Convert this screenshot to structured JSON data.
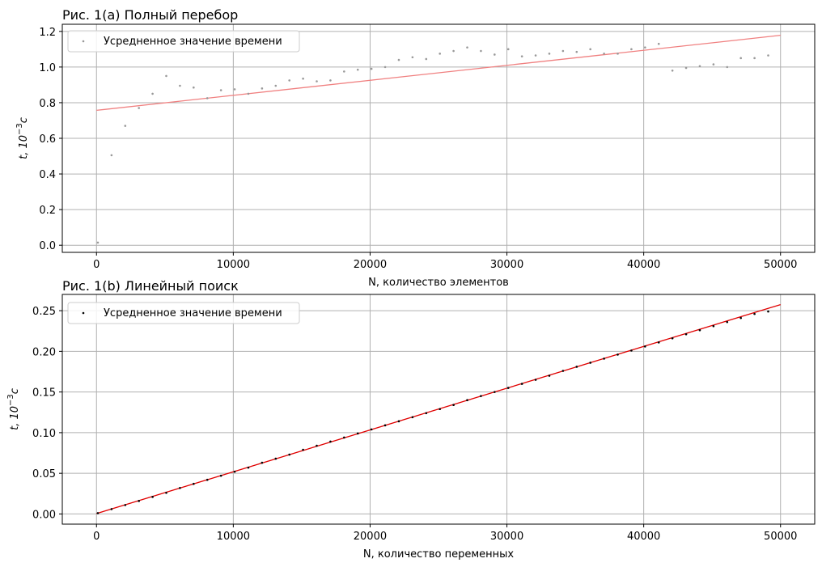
{
  "chart_data": [
    {
      "type": "scatter",
      "title": "Рис. 1(a) Полный перебор",
      "xlabel": "N, количество элементов",
      "ylabel_main": "t, 10",
      "ylabel_exp": "−3",
      "ylabel_unit": "c",
      "xlim": [
        -2500,
        52500
      ],
      "ylim": [
        -0.04,
        1.24
      ],
      "xticks": [
        0,
        10000,
        20000,
        30000,
        40000,
        50000
      ],
      "yticks": [
        0.0,
        0.2,
        0.4,
        0.6,
        0.8,
        1.0,
        1.2
      ],
      "ytick_labels": [
        "0.0",
        "0.2",
        "0.4",
        "0.6",
        "0.8",
        "1.0",
        "1.2"
      ],
      "grid": true,
      "legend_position": "upper-left",
      "marker_color": "#999999",
      "line_color": "#f08080",
      "series": [
        {
          "name": "Усредненное значение времени",
          "x": [
            100,
            1100,
            2100,
            3100,
            4100,
            5100,
            6100,
            7100,
            8100,
            9100,
            10100,
            11100,
            12100,
            13100,
            14100,
            15100,
            16100,
            17100,
            18100,
            19100,
            20100,
            21100,
            22100,
            23100,
            24100,
            25100,
            26100,
            27100,
            28100,
            29100,
            30100,
            31100,
            32100,
            33100,
            34100,
            35100,
            36100,
            37100,
            38100,
            39100,
            40100,
            41100,
            42100,
            43100,
            44100,
            45100,
            46100,
            47100,
            48100,
            49100
          ],
          "y": [
            0.015,
            0.505,
            0.67,
            0.77,
            0.85,
            0.95,
            0.895,
            0.885,
            0.825,
            0.87,
            0.875,
            0.85,
            0.88,
            0.895,
            0.925,
            0.935,
            0.92,
            0.925,
            0.975,
            0.985,
            0.99,
            1.0,
            1.04,
            1.055,
            1.045,
            1.075,
            1.09,
            1.11,
            1.09,
            1.07,
            1.1,
            1.06,
            1.065,
            1.075,
            1.09,
            1.085,
            1.1,
            1.075,
            1.075,
            1.1,
            1.11,
            1.13,
            0.98,
            0.995,
            1.005,
            1.015,
            1.0,
            1.05,
            1.05,
            1.065
          ]
        }
      ],
      "fit_line": {
        "x": [
          0,
          50000
        ],
        "y": [
          0.757,
          1.178
        ]
      }
    },
    {
      "type": "scatter",
      "title": "Рис. 1(b) Линейный поиск",
      "xlabel": "N, количество переменных",
      "ylabel_main": "t, 10",
      "ylabel_exp": "−3",
      "ylabel_unit": "c",
      "xlim": [
        -2500,
        52500
      ],
      "ylim": [
        -0.0125,
        0.27
      ],
      "xticks": [
        0,
        10000,
        20000,
        30000,
        40000,
        50000
      ],
      "yticks": [
        0.0,
        0.05,
        0.1,
        0.15,
        0.2,
        0.25
      ],
      "ytick_labels": [
        "0.00",
        "0.05",
        "0.10",
        "0.15",
        "0.20",
        "0.25"
      ],
      "grid": true,
      "legend_position": "upper-left",
      "marker_color": "#000000",
      "line_color": "#e00000",
      "series": [
        {
          "name": "Усредненное значение времени",
          "x": [
            100,
            1100,
            2100,
            3100,
            4100,
            5100,
            6100,
            7100,
            8100,
            9100,
            10100,
            11100,
            12100,
            13100,
            14100,
            15100,
            16100,
            17100,
            18100,
            19100,
            20100,
            21100,
            22100,
            23100,
            24100,
            25100,
            26100,
            27100,
            28100,
            29100,
            30100,
            31100,
            32100,
            33100,
            34100,
            35100,
            36100,
            37100,
            38100,
            39100,
            40100,
            41100,
            42100,
            43100,
            44100,
            45100,
            46100,
            47100,
            48100,
            49100
          ],
          "y": [
            0.001,
            0.006,
            0.011,
            0.016,
            0.021,
            0.026,
            0.032,
            0.037,
            0.042,
            0.047,
            0.052,
            0.057,
            0.063,
            0.068,
            0.073,
            0.079,
            0.084,
            0.089,
            0.094,
            0.099,
            0.104,
            0.109,
            0.114,
            0.119,
            0.124,
            0.129,
            0.134,
            0.14,
            0.145,
            0.15,
            0.155,
            0.16,
            0.165,
            0.17,
            0.176,
            0.181,
            0.186,
            0.191,
            0.196,
            0.201,
            0.206,
            0.211,
            0.216,
            0.221,
            0.226,
            0.231,
            0.236,
            0.241,
            0.246,
            0.249
          ]
        }
      ],
      "fit_line": {
        "x": [
          0,
          50000
        ],
        "y": [
          0.0005,
          0.2575
        ]
      }
    }
  ]
}
